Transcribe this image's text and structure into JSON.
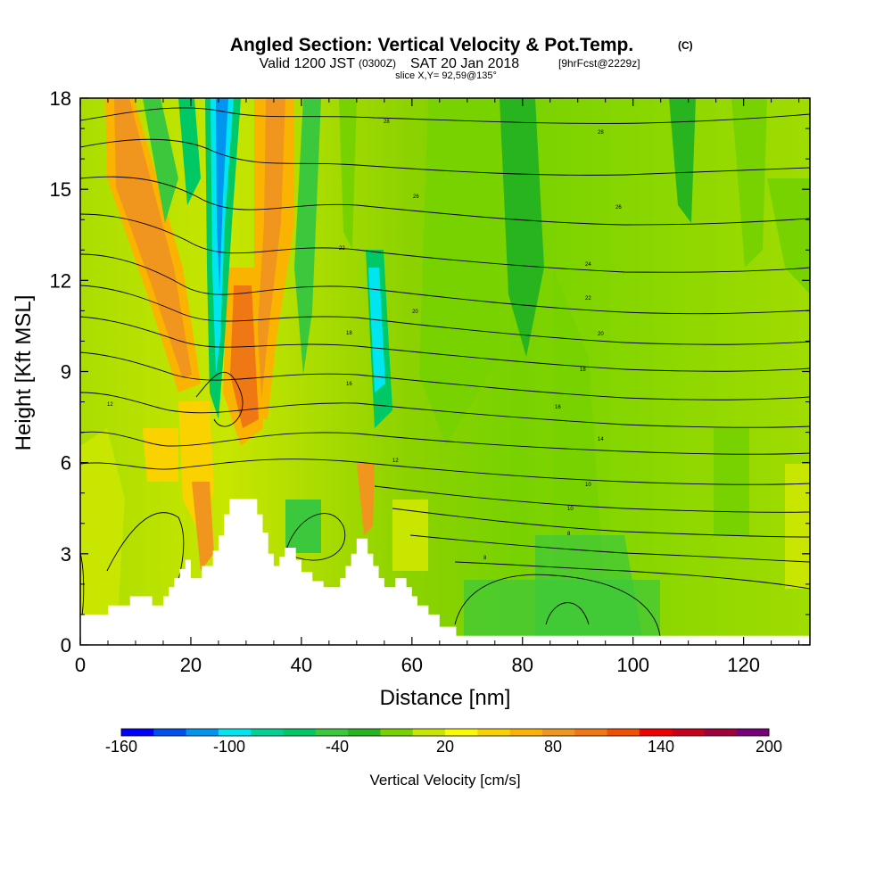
{
  "header": {
    "title_main": "Angled Section: Vertical Velocity & Pot.Temp.",
    "title_units": "(C)",
    "valid_prefix": "Valid 1200 JST",
    "valid_utc": "(0300Z)",
    "valid_date": "SAT 20 Jan 2018",
    "forecast": "[9hrFcst@2229z]",
    "slice": "slice X,Y= 92,59@135°"
  },
  "chart_data": {
    "type": "heatmap",
    "title": "Angled Section: Vertical Velocity & Pot.Temp. (C)",
    "xlabel": "Distance [nm]",
    "ylabel": "Height [Kft MSL]",
    "xlim": [
      0,
      132
    ],
    "ylim": [
      0,
      18
    ],
    "x_ticks": [
      0,
      20,
      40,
      60,
      80,
      100,
      120
    ],
    "y_ticks": [
      0,
      3,
      6,
      9,
      12,
      15,
      18
    ],
    "colorbar": {
      "label": "Vertical Velocity [cm/s]",
      "min": -160,
      "max": 200,
      "step": 20,
      "tick_labels": [
        "-160",
        "-100",
        "-40",
        "20",
        "80",
        "140",
        "200"
      ],
      "colors": [
        "#0000ff",
        "#0050f0",
        "#0096f0",
        "#00e6f0",
        "#00d296",
        "#00c864",
        "#3cc83c",
        "#28b41e",
        "#78d200",
        "#c8e600",
        "#fafa00",
        "#fad200",
        "#fab400",
        "#f0961e",
        "#f07814",
        "#f05000",
        "#f00000",
        "#c8001e",
        "#a0003c",
        "#780078"
      ]
    },
    "pot_temp_labels": [
      "28",
      "26",
      "24",
      "22",
      "20",
      "18",
      "16",
      "14",
      "12",
      "10",
      "8"
    ],
    "terrain_profile": [
      [
        0,
        1.0
      ],
      [
        5,
        1.0
      ],
      [
        5,
        1.3
      ],
      [
        9,
        1.3
      ],
      [
        9,
        1.6
      ],
      [
        13,
        1.6
      ],
      [
        13,
        1.3
      ],
      [
        15,
        1.3
      ],
      [
        15,
        1.6
      ],
      [
        16,
        1.6
      ],
      [
        16,
        1.9
      ],
      [
        17,
        1.9
      ],
      [
        17,
        2.2
      ],
      [
        18,
        2.2
      ],
      [
        18,
        2.5
      ],
      [
        19,
        2.5
      ],
      [
        19,
        2.8
      ],
      [
        20,
        2.8
      ],
      [
        20,
        2.2
      ],
      [
        22,
        2.2
      ],
      [
        22,
        2.6
      ],
      [
        24,
        2.6
      ],
      [
        24,
        3.1
      ],
      [
        25,
        3.1
      ],
      [
        25,
        3.6
      ],
      [
        26,
        3.6
      ],
      [
        26,
        4.3
      ],
      [
        27,
        4.3
      ],
      [
        27,
        4.8
      ],
      [
        32,
        4.8
      ],
      [
        32,
        4.3
      ],
      [
        33,
        4.3
      ],
      [
        33,
        3.7
      ],
      [
        34,
        3.7
      ],
      [
        34,
        3.0
      ],
      [
        35,
        3.0
      ],
      [
        35,
        2.6
      ],
      [
        36,
        2.6
      ],
      [
        36,
        2.9
      ],
      [
        37,
        2.9
      ],
      [
        37,
        3.2
      ],
      [
        39,
        3.2
      ],
      [
        39,
        2.8
      ],
      [
        40,
        2.8
      ],
      [
        40,
        2.4
      ],
      [
        42,
        2.4
      ],
      [
        42,
        2.1
      ],
      [
        44,
        2.1
      ],
      [
        44,
        1.9
      ],
      [
        47,
        1.9
      ],
      [
        47,
        2.2
      ],
      [
        48,
        2.2
      ],
      [
        48,
        2.6
      ],
      [
        49,
        2.6
      ],
      [
        49,
        3.0
      ],
      [
        50,
        3.0
      ],
      [
        50,
        3.5
      ],
      [
        52,
        3.5
      ],
      [
        52,
        3.0
      ],
      [
        53,
        3.0
      ],
      [
        53,
        2.6
      ],
      [
        54,
        2.6
      ],
      [
        54,
        2.2
      ],
      [
        55,
        2.2
      ],
      [
        55,
        1.9
      ],
      [
        57,
        1.9
      ],
      [
        57,
        2.2
      ],
      [
        59,
        2.2
      ],
      [
        59,
        1.9
      ],
      [
        60,
        1.9
      ],
      [
        60,
        1.6
      ],
      [
        61,
        1.6
      ],
      [
        61,
        1.3
      ],
      [
        63,
        1.3
      ],
      [
        63,
        1.0
      ],
      [
        65,
        1.0
      ],
      [
        65,
        0.6
      ],
      [
        68,
        0.6
      ],
      [
        68,
        0.3
      ],
      [
        132,
        0.3
      ]
    ]
  }
}
